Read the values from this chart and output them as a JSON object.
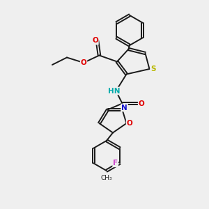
{
  "bg_color": "#efefef",
  "bond_color": "#1a1a1a",
  "atom_colors": {
    "S": "#b8b800",
    "O": "#e00000",
    "NH": "#00aaaa",
    "F": "#cc44cc",
    "N": "#1010cc"
  }
}
